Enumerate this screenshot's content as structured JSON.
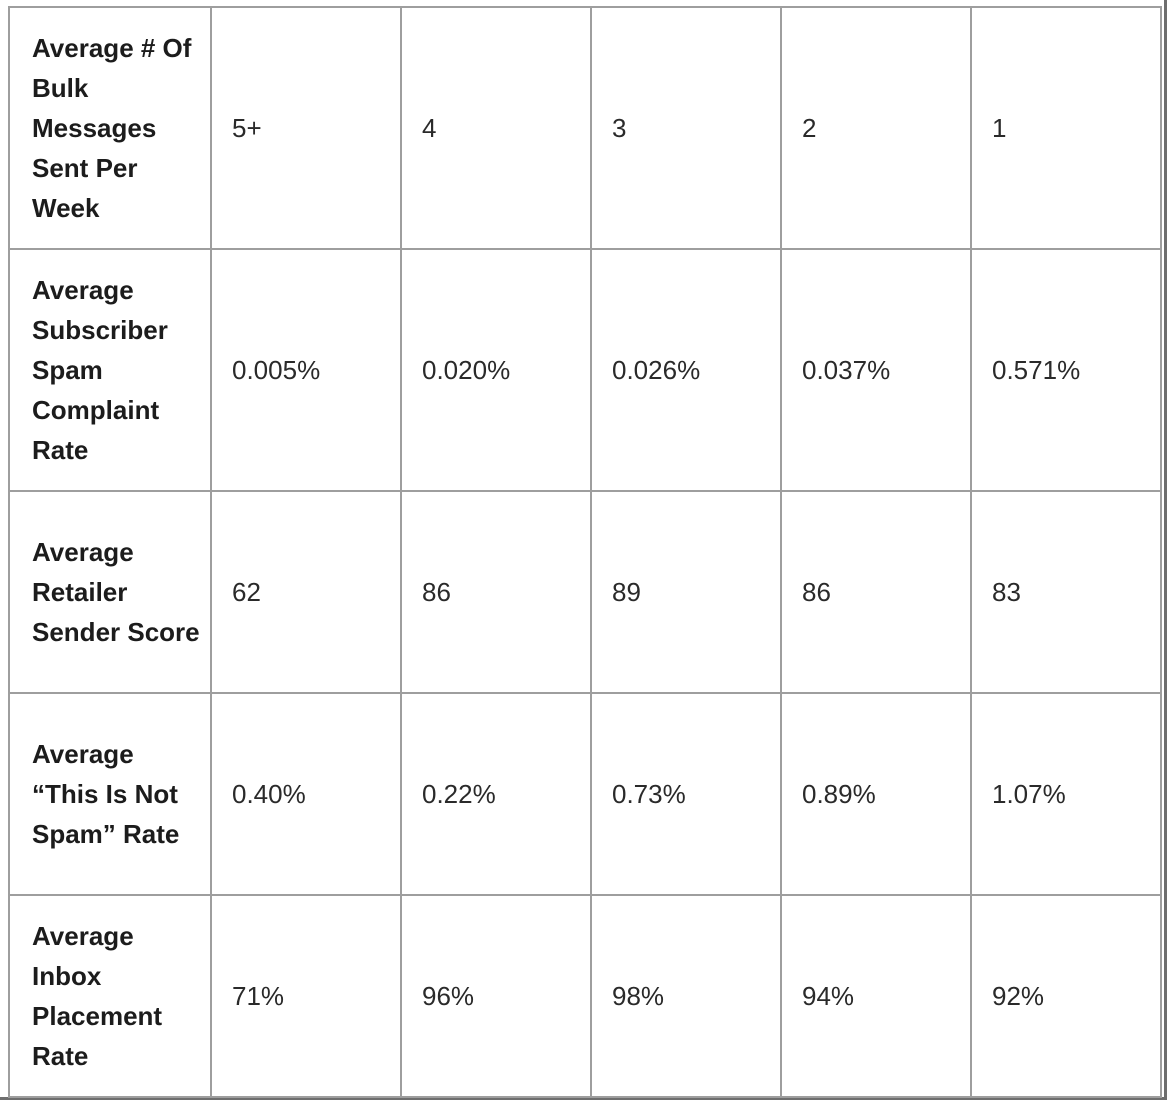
{
  "table": {
    "rows": [
      {
        "label": "Average # Of Bulk Messages Sent Per Week",
        "values": [
          "5+",
          "4",
          "3",
          "2",
          "1"
        ]
      },
      {
        "label": "Average Subscriber Spam Complaint Rate",
        "values": [
          "0.005%",
          "0.020%",
          "0.026%",
          "0.037%",
          "0.571%"
        ]
      },
      {
        "label": "Average Retailer Sender Score",
        "values": [
          "62",
          "86",
          "89",
          "86",
          "83"
        ]
      },
      {
        "label": "Average “This Is Not Spam” Rate",
        "values": [
          "0.40%",
          "0.22%",
          "0.73%",
          "0.89%",
          "1.07%"
        ]
      },
      {
        "label": "Average Inbox Placement Rate",
        "values": [
          "71%",
          "96%",
          "98%",
          "94%",
          "92%"
        ]
      }
    ]
  },
  "colors": {
    "border": "#9e9e9e",
    "text": "#222222",
    "background": "#ffffff"
  }
}
